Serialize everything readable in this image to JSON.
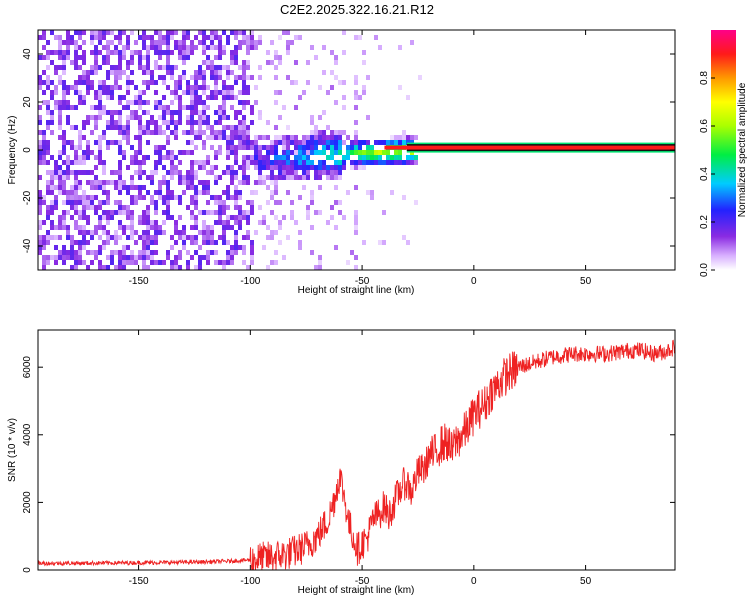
{
  "title": "C2E2.2025.322.16.21.R12",
  "colors": {
    "snr_line": "#ee2222",
    "carrier": "#ff1a1a",
    "axis": "#000000",
    "background": "#ffffff"
  },
  "chart_data": [
    {
      "type": "heatmap",
      "title": "C2E2.2025.322.16.21.R12",
      "xlabel": "Height of straight line (km)",
      "ylabel": "Frequency (Hz)",
      "xlim": [
        -195,
        90
      ],
      "ylim": [
        -50,
        50
      ],
      "xticks": [
        -150,
        -100,
        -50,
        0,
        50
      ],
      "xtick_labels": [
        "-150",
        "-100",
        "-50",
        "0",
        "50"
      ],
      "yticks": [
        -40,
        -20,
        0,
        20,
        40
      ],
      "ytick_labels": [
        "-40",
        "-20",
        "0",
        "20",
        "40"
      ],
      "grid": false,
      "colorbar": {
        "label": "Normalized spectral amplitude",
        "range": [
          0,
          1
        ],
        "ticks": [
          0.0,
          0.2,
          0.4,
          0.6,
          0.8
        ],
        "tick_labels": [
          "0.0",
          "0.2",
          "0.4",
          "0.6",
          "0.8"
        ],
        "colormap": "rainbow (white-violet-blue-cyan-green-yellow-red-magenta)"
      },
      "features": {
        "noise_region_x": [
          -195,
          -100
        ],
        "sparse_noise_region_x": [
          -100,
          -52
        ],
        "transition_x": [
          -100,
          -25
        ],
        "carrier_line_x": [
          -40,
          90
        ],
        "carrier_frequency_hz": 1,
        "noise_amplitude": 0.15,
        "carrier_amplitude": 0.95
      }
    },
    {
      "type": "line",
      "xlabel": "Height of straight line (km)",
      "ylabel": "SNR (10 * v/v)",
      "xlim": [
        -195,
        90
      ],
      "ylim": [
        0,
        7100
      ],
      "xticks": [
        -150,
        -100,
        -50,
        0,
        50
      ],
      "xtick_labels": [
        "-150",
        "-100",
        "-50",
        "0",
        "50"
      ],
      "yticks": [
        0,
        2000,
        4000,
        6000
      ],
      "ytick_labels": [
        "0",
        "2000",
        "4000",
        "6000"
      ],
      "grid": false,
      "series": [
        {
          "x": [
            -195,
            -180,
            -160,
            -140,
            -120,
            -110,
            -100,
            -90,
            -85,
            -80,
            -75,
            -70,
            -65,
            -62,
            -60,
            -58,
            -56,
            -54,
            -52,
            -50,
            -48,
            -45,
            -42,
            -40,
            -38,
            -35,
            -32,
            -30,
            -28,
            -25,
            -22,
            -20,
            -18,
            -15,
            -12,
            -10,
            -8,
            -5,
            -3,
            0,
            3,
            5,
            8,
            10,
            12,
            15,
            20,
            25,
            30,
            35,
            40,
            45,
            50,
            55,
            60,
            65,
            70,
            75,
            80,
            85,
            90
          ],
          "y": [
            200,
            200,
            210,
            220,
            240,
            260,
            300,
            380,
            450,
            550,
            700,
            1000,
            1500,
            2200,
            2800,
            2200,
            1400,
            1000,
            600,
            800,
            900,
            1500,
            1700,
            1900,
            1600,
            2100,
            2500,
            2600,
            2300,
            2900,
            3000,
            3400,
            3400,
            3700,
            3800,
            3500,
            3800,
            4000,
            4200,
            4600,
            4800,
            4900,
            5300,
            5400,
            5600,
            5800,
            6000,
            6100,
            6200,
            6300,
            6350,
            6400,
            6400,
            6400,
            6400,
            6450,
            6500,
            6500,
            6400,
            6450,
            6600
          ]
        }
      ]
    }
  ]
}
